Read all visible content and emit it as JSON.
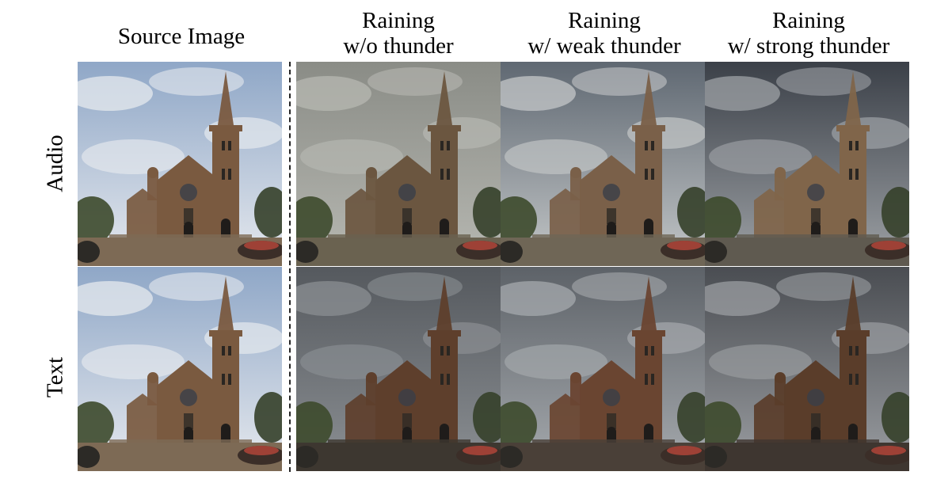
{
  "column_headers": [
    {
      "line1": "Source Image",
      "line2": ""
    },
    {
      "line1": "Raining",
      "line2": "w/o thunder"
    },
    {
      "line1": "Raining",
      "line2": "w/ weak thunder"
    },
    {
      "line1": "Raining",
      "line2": "w/ strong thunder"
    }
  ],
  "row_labels": [
    "Audio",
    "Text"
  ],
  "tiles": [
    {
      "row": "Audio",
      "column": "Source Image",
      "sky": "#8fa7c7",
      "cloud": "#e6e9ee",
      "stone": "#7a5a40",
      "ground": "#7d6a55"
    },
    {
      "row": "Audio",
      "column": "Raining w/o thunder",
      "sky": "#8a8c86",
      "cloud": "#b7b8b2",
      "stone": "#6b5640",
      "ground": "#6a6250"
    },
    {
      "row": "Audio",
      "column": "Raining w/ weak thunder",
      "sky": "#5f6872",
      "cloud": "#c4c7c8",
      "stone": "#7a6049",
      "ground": "#6f6656"
    },
    {
      "row": "Audio",
      "column": "Raining w/ strong thunder",
      "sky": "#3b4048",
      "cloud": "#9ea2a6",
      "stone": "#80654a",
      "ground": "#5f5a50"
    },
    {
      "row": "Text",
      "column": "Source Image",
      "sky": "#8fa7c7",
      "cloud": "#e6e9ee",
      "stone": "#7a5a40",
      "ground": "#7d6a55"
    },
    {
      "row": "Text",
      "column": "Raining w/o thunder",
      "sky": "#55595e",
      "cloud": "#8b8f93",
      "stone": "#5e3f2c",
      "ground": "#3d3730"
    },
    {
      "row": "Text",
      "column": "Raining w/ weak thunder",
      "sky": "#5d6268",
      "cloud": "#a6aaae",
      "stone": "#6a4531",
      "ground": "#4a4038"
    },
    {
      "row": "Text",
      "column": "Raining w/ strong thunder",
      "sky": "#4a4d52",
      "cloud": "#9b9ea2",
      "stone": "#5a3d2a",
      "ground": "#3e3630"
    }
  ]
}
